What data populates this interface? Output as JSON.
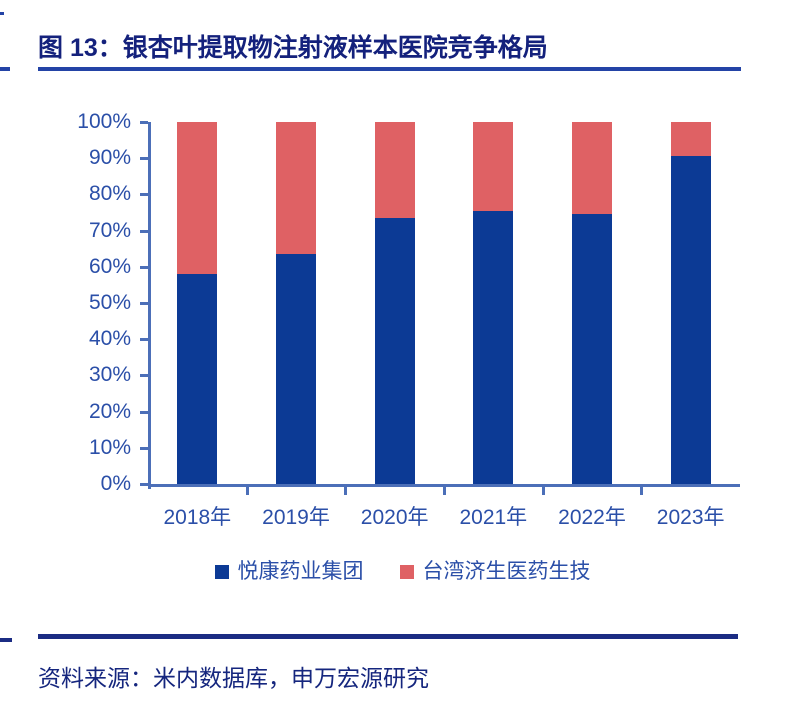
{
  "header": {
    "title": "图 13：银杏叶提取物注射液样本医院竞争格局"
  },
  "chart_data": {
    "type": "bar",
    "stacked": true,
    "unit": "percent share",
    "title": "银杏叶提取物注射液样本医院竞争格局",
    "categories": [
      "2018年",
      "2019年",
      "2020年",
      "2021年",
      "2022年",
      "2023年"
    ],
    "series": [
      {
        "name": "悦康药业集团",
        "color": "#0C3A95",
        "values": [
          58,
          63.5,
          73.5,
          75.5,
          74.5,
          90.5
        ]
      },
      {
        "name": "台湾济生医药生技",
        "color": "#DF6164",
        "values": [
          42,
          36.5,
          26.5,
          24.5,
          25.5,
          9.5
        ]
      }
    ],
    "xlabel": "",
    "ylabel": "",
    "ylim": [
      0,
      100
    ],
    "yticks": [
      "0%",
      "10%",
      "20%",
      "30%",
      "40%",
      "50%",
      "60%",
      "70%",
      "80%",
      "90%",
      "100%"
    ],
    "grid": false,
    "legend_position": "bottom",
    "axis_line_color": "#4C6FB8",
    "axis_label_color": "#2B4FA8"
  },
  "footer": {
    "source": "资料来源：米内数据库，申万宏源研究"
  },
  "colors": {
    "title": "#14217C",
    "rule_light": "#2343A6",
    "rule_dark": "#1B2C83",
    "source": "#15267E",
    "axis_line": "#4C6FB8",
    "axis_label": "#2B4FA8"
  }
}
